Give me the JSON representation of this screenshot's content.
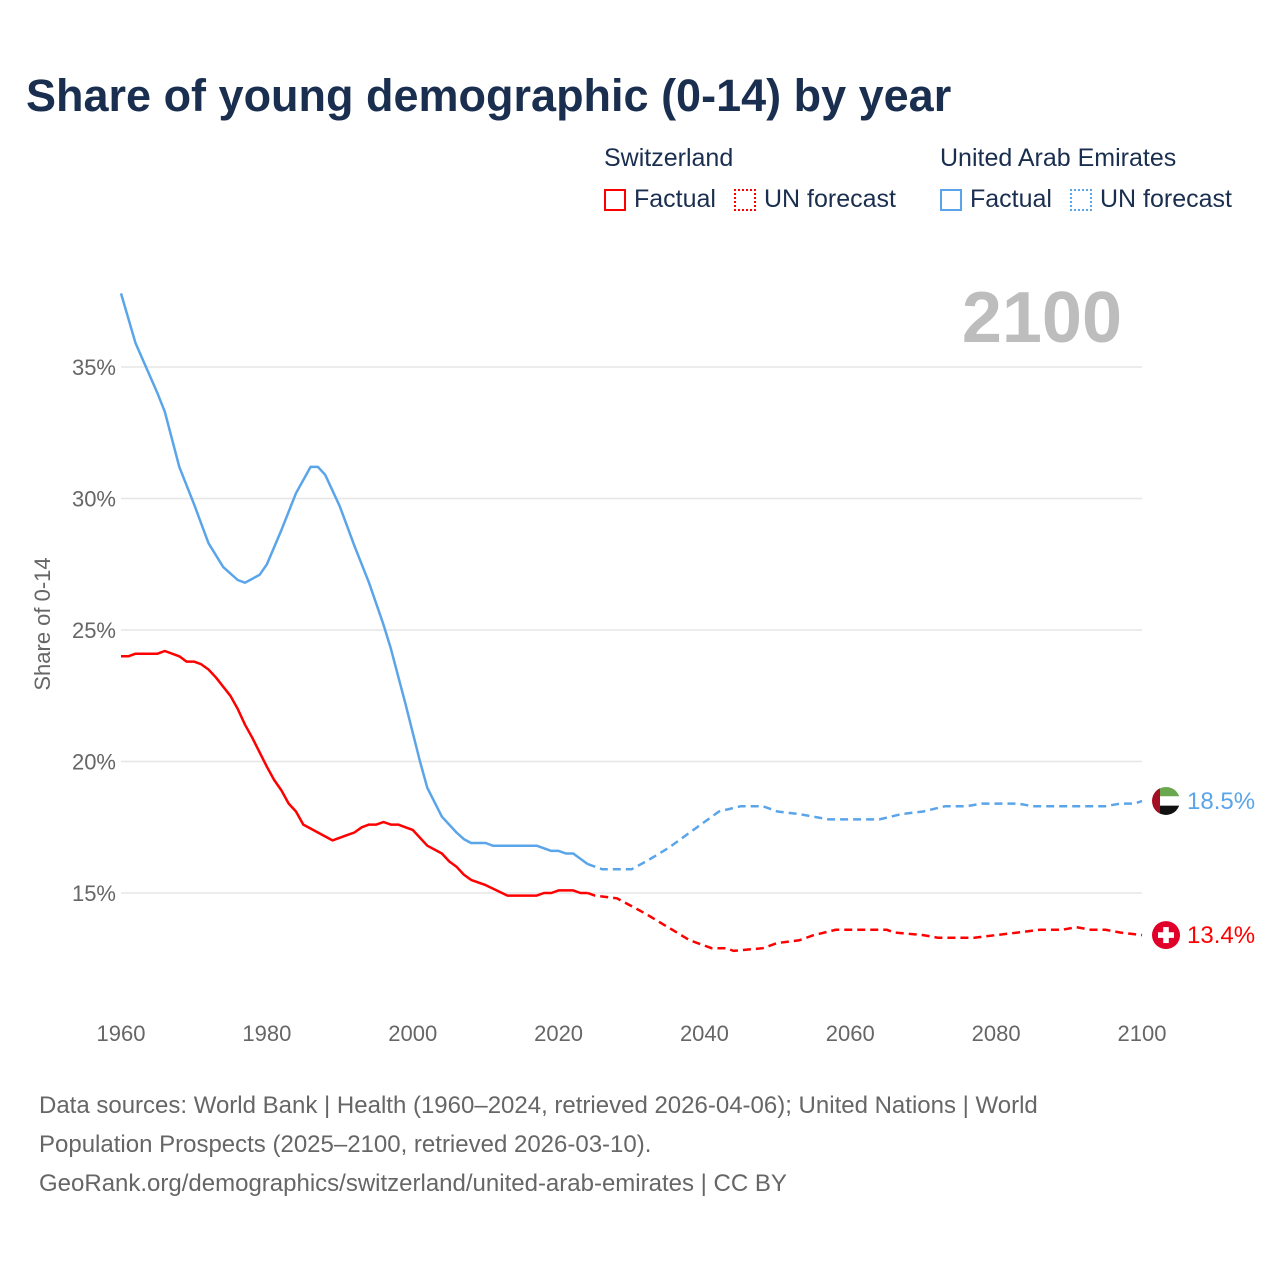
{
  "title": "Share of young demographic (0-14) by year",
  "legend": {
    "groups": [
      {
        "name": "Switzerland",
        "color": "#ff0000",
        "factual": "Factual",
        "forecast": "UN forecast"
      },
      {
        "name": "United Arab Emirates",
        "color": "#5aa5ea",
        "factual": "Factual",
        "forecast": "UN forecast"
      }
    ]
  },
  "footer": {
    "line1": "Data sources: World Bank | Health (1960–2024, retrieved 2026-04-06); United Nations | World",
    "line2": "Population Prospects (2025–2100, retrieved 2026-03-10).",
    "line3": "GeoRank.org/demographics/switzerland/united-arab-emirates | CC BY"
  },
  "chart_data": {
    "type": "line",
    "title": "Share of young demographic (0-14) by year",
    "year_label": "2100",
    "xlabel": "",
    "ylabel": "Share of 0-14",
    "xlim": [
      1960,
      2100
    ],
    "ylim": [
      11.7,
      38.5
    ],
    "xticks": [
      1960,
      1980,
      2000,
      2020,
      2040,
      2060,
      2080,
      2100
    ],
    "yticks": [
      15,
      20,
      25,
      30,
      35
    ],
    "ytick_labels": [
      "15%",
      "20%",
      "25%",
      "30%",
      "35%"
    ],
    "grid": true,
    "factual_until": 2024,
    "series": [
      {
        "name": "Switzerland",
        "color": "#ff0000",
        "end_label": "13.4%",
        "flag": "switzerland",
        "points": [
          [
            1960,
            24.0
          ],
          [
            1961,
            24.0
          ],
          [
            1962,
            24.1
          ],
          [
            1965,
            24.1
          ],
          [
            1966,
            24.2
          ],
          [
            1968,
            24.0
          ],
          [
            1969,
            23.8
          ],
          [
            1970,
            23.8
          ],
          [
            1971,
            23.7
          ],
          [
            1972,
            23.5
          ],
          [
            1973,
            23.2
          ],
          [
            1975,
            22.5
          ],
          [
            1976,
            22.0
          ],
          [
            1977,
            21.4
          ],
          [
            1978,
            20.9
          ],
          [
            1980,
            19.8
          ],
          [
            1981,
            19.3
          ],
          [
            1982,
            18.9
          ],
          [
            1983,
            18.4
          ],
          [
            1984,
            18.1
          ],
          [
            1985,
            17.6
          ],
          [
            1987,
            17.3
          ],
          [
            1989,
            17.0
          ],
          [
            1991,
            17.2
          ],
          [
            1992,
            17.3
          ],
          [
            1993,
            17.5
          ],
          [
            1994,
            17.6
          ],
          [
            1995,
            17.6
          ],
          [
            1996,
            17.7
          ],
          [
            1997,
            17.6
          ],
          [
            1998,
            17.6
          ],
          [
            2000,
            17.4
          ],
          [
            2002,
            16.8
          ],
          [
            2004,
            16.5
          ],
          [
            2005,
            16.2
          ],
          [
            2006,
            16.0
          ],
          [
            2007,
            15.7
          ],
          [
            2008,
            15.5
          ],
          [
            2010,
            15.3
          ],
          [
            2013,
            14.9
          ],
          [
            2017,
            14.9
          ],
          [
            2018,
            15.0
          ],
          [
            2019,
            15.0
          ],
          [
            2020,
            15.1
          ],
          [
            2022,
            15.1
          ],
          [
            2023,
            15.0
          ],
          [
            2024,
            15.0
          ],
          [
            2025,
            14.9
          ],
          [
            2028,
            14.8
          ],
          [
            2030,
            14.5
          ],
          [
            2032,
            14.2
          ],
          [
            2035,
            13.7
          ],
          [
            2038,
            13.2
          ],
          [
            2041,
            12.9
          ],
          [
            2043,
            12.9
          ],
          [
            2044,
            12.8
          ],
          [
            2048,
            12.9
          ],
          [
            2050,
            13.1
          ],
          [
            2053,
            13.2
          ],
          [
            2055,
            13.4
          ],
          [
            2058,
            13.6
          ],
          [
            2065,
            13.6
          ],
          [
            2066,
            13.5
          ],
          [
            2070,
            13.4
          ],
          [
            2072,
            13.3
          ],
          [
            2077,
            13.3
          ],
          [
            2080,
            13.4
          ],
          [
            2083,
            13.5
          ],
          [
            2086,
            13.6
          ],
          [
            2089,
            13.6
          ],
          [
            2091,
            13.7
          ],
          [
            2093,
            13.6
          ],
          [
            2095,
            13.6
          ],
          [
            2097,
            13.5
          ],
          [
            2100,
            13.4
          ]
        ]
      },
      {
        "name": "United Arab Emirates",
        "color": "#5aa5ea",
        "end_label": "18.5%",
        "flag": "uae",
        "points": [
          [
            1960,
            37.8
          ],
          [
            1962,
            35.9
          ],
          [
            1965,
            34.0
          ],
          [
            1966,
            33.3
          ],
          [
            1968,
            31.2
          ],
          [
            1970,
            29.8
          ],
          [
            1972,
            28.3
          ],
          [
            1974,
            27.4
          ],
          [
            1976,
            26.9
          ],
          [
            1977,
            26.8
          ],
          [
            1979,
            27.1
          ],
          [
            1980,
            27.5
          ],
          [
            1982,
            28.8
          ],
          [
            1984,
            30.2
          ],
          [
            1986,
            31.2
          ],
          [
            1987,
            31.2
          ],
          [
            1988,
            30.9
          ],
          [
            1990,
            29.7
          ],
          [
            1992,
            28.2
          ],
          [
            1994,
            26.8
          ],
          [
            1996,
            25.2
          ],
          [
            1997,
            24.3
          ],
          [
            1999,
            22.2
          ],
          [
            2001,
            20.0
          ],
          [
            2002,
            19.0
          ],
          [
            2004,
            17.9
          ],
          [
            2006,
            17.3
          ],
          [
            2007,
            17.05
          ],
          [
            2008,
            16.9
          ],
          [
            2010,
            16.9
          ],
          [
            2011,
            16.8
          ],
          [
            2017,
            16.8
          ],
          [
            2019,
            16.6
          ],
          [
            2020,
            16.6
          ],
          [
            2021,
            16.5
          ],
          [
            2022,
            16.5
          ],
          [
            2024,
            16.1
          ],
          [
            2025,
            16.0
          ],
          [
            2026,
            15.9
          ],
          [
            2030,
            15.9
          ],
          [
            2032,
            16.2
          ],
          [
            2035,
            16.7
          ],
          [
            2038,
            17.3
          ],
          [
            2040,
            17.7
          ],
          [
            2042,
            18.1
          ],
          [
            2045,
            18.3
          ],
          [
            2048,
            18.3
          ],
          [
            2050,
            18.1
          ],
          [
            2053,
            18.0
          ],
          [
            2055,
            17.9
          ],
          [
            2057,
            17.8
          ],
          [
            2064,
            17.8
          ],
          [
            2067,
            18.0
          ],
          [
            2070,
            18.1
          ],
          [
            2073,
            18.3
          ],
          [
            2076,
            18.3
          ],
          [
            2078,
            18.4
          ],
          [
            2083,
            18.4
          ],
          [
            2085,
            18.3
          ],
          [
            2095,
            18.3
          ],
          [
            2097,
            18.4
          ],
          [
            2099,
            18.4
          ],
          [
            2100,
            18.5
          ]
        ]
      }
    ]
  }
}
